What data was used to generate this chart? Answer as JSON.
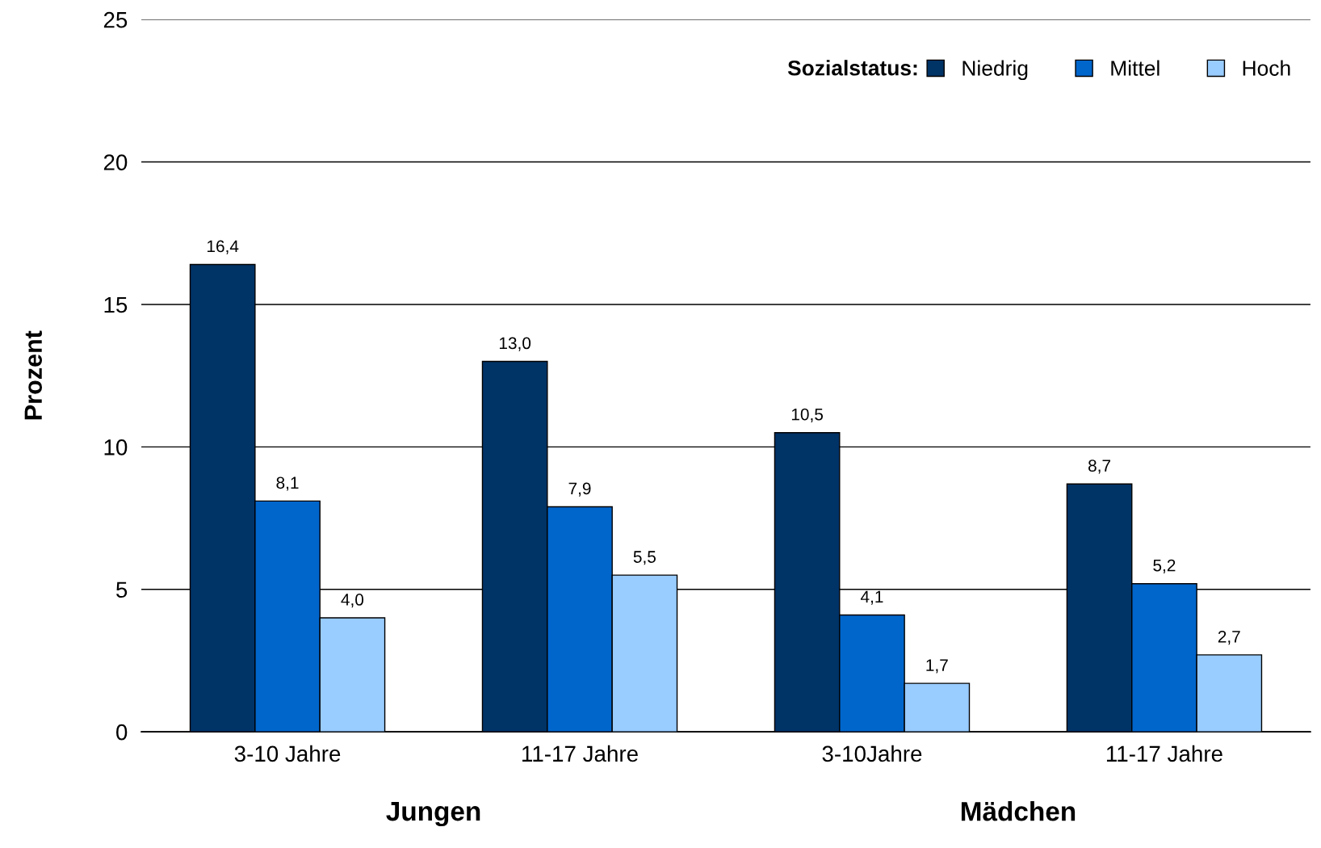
{
  "chart_data": {
    "type": "bar",
    "ylabel": "Prozent",
    "legend_title": "Sozialstatus:",
    "categories": [
      "3-10 Jahre",
      "11-17 Jahre",
      "3-10Jahre",
      "11-17 Jahre"
    ],
    "series": [
      {
        "name": "Niedrig",
        "color": "#003366",
        "values": [
          16.4,
          13.0,
          10.5,
          8.7
        ],
        "value_labels": [
          "16,4",
          "13,0",
          "10,5",
          "8,7"
        ]
      },
      {
        "name": "Mittel",
        "color": "#0066cc",
        "values": [
          8.1,
          7.9,
          4.1,
          5.2
        ],
        "value_labels": [
          "8,1",
          "7,9",
          "4,1",
          "5,2"
        ]
      },
      {
        "name": "Hoch",
        "color": "#99ccff",
        "values": [
          4.0,
          5.5,
          1.7,
          2.7
        ],
        "value_labels": [
          "4,0",
          "5,5",
          "1,7",
          "2,7"
        ]
      }
    ],
    "ylim": [
      0,
      25
    ],
    "yticks": [
      0,
      5,
      10,
      15,
      20,
      25
    ],
    "grid": "y",
    "legend": "top right",
    "annotations": [
      "Jungen",
      "Mädchen"
    ]
  }
}
